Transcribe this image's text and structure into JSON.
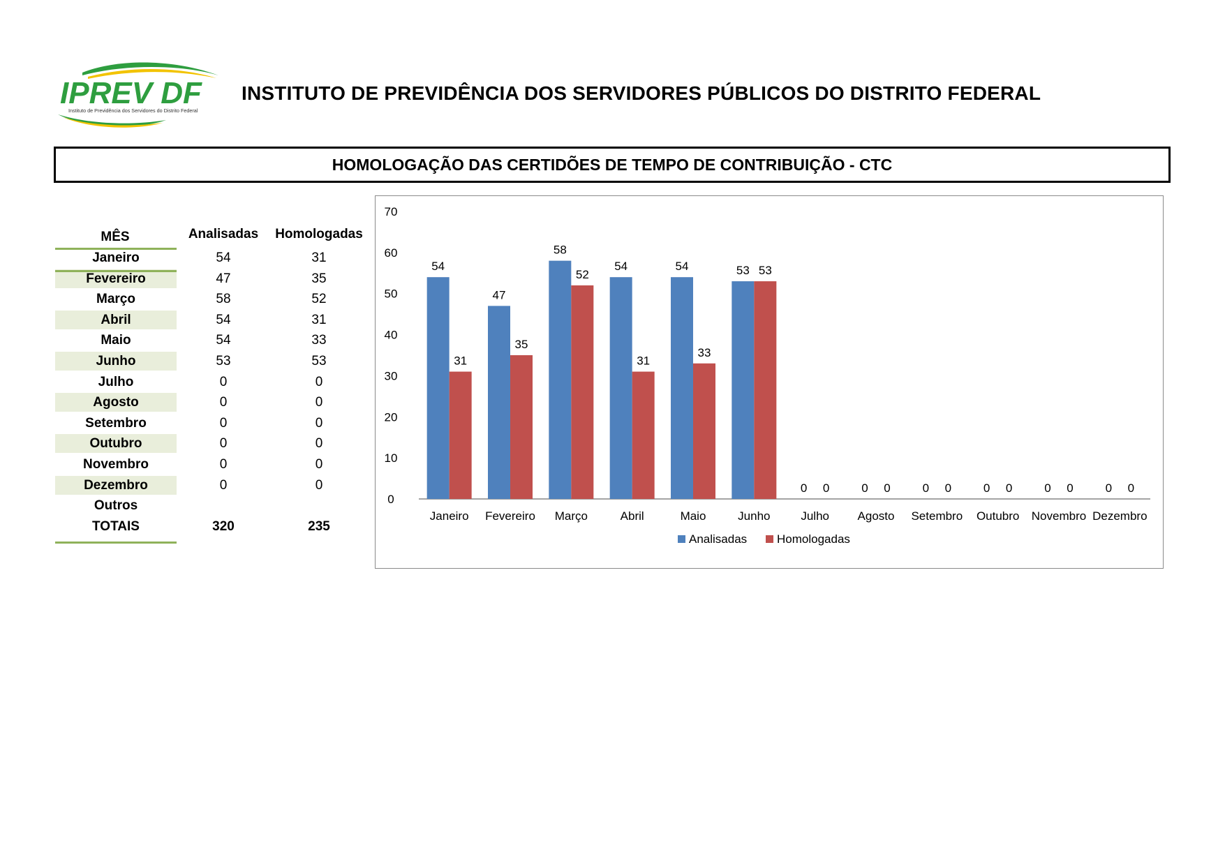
{
  "header": {
    "logo_text": "IPREV DF",
    "logo_subtext": "Instituto de Previdência dos Servidores do Distrito Federal",
    "org_title": "INSTITUTO DE PREVIDÊNCIA DOS SERVIDORES PÚBLICOS DO DISTRITO FEDERAL"
  },
  "report": {
    "title": "HOMOLOGAÇÃO DAS CERTIDÕES DE TEMPO DE CONTRIBUIÇÃO - CTC"
  },
  "table": {
    "headers": {
      "month": "MÊS",
      "analisadas": "Analisadas",
      "homologadas": "Homologadas"
    },
    "rows": [
      {
        "month": "Janeiro",
        "analisadas": "54",
        "homologadas": "31"
      },
      {
        "month": "Fevereiro",
        "analisadas": "47",
        "homologadas": "35"
      },
      {
        "month": "Março",
        "analisadas": "58",
        "homologadas": "52"
      },
      {
        "month": "Abril",
        "analisadas": "54",
        "homologadas": "31"
      },
      {
        "month": "Maio",
        "analisadas": "54",
        "homologadas": "33"
      },
      {
        "month": "Junho",
        "analisadas": "53",
        "homologadas": "53"
      },
      {
        "month": "Julho",
        "analisadas": "0",
        "homologadas": "0"
      },
      {
        "month": "Agosto",
        "analisadas": "0",
        "homologadas": "0"
      },
      {
        "month": "Setembro",
        "analisadas": "0",
        "homologadas": "0"
      },
      {
        "month": "Outubro",
        "analisadas": "0",
        "homologadas": "0"
      },
      {
        "month": "Novembro",
        "analisadas": "0",
        "homologadas": "0"
      },
      {
        "month": "Dezembro",
        "analisadas": "0",
        "homologadas": "0"
      },
      {
        "month": "Outros",
        "analisadas": "",
        "homologadas": ""
      }
    ],
    "totals": {
      "label": "TOTAIS",
      "analisadas": "320",
      "homologadas": "235"
    }
  },
  "colors": {
    "analisadas": "#4f81bd",
    "homologadas": "#c0504d",
    "table_accent": "#8fb25a",
    "table_shade": "#e9eedb",
    "logo_blue": "#1f4e9b",
    "logo_green": "#2e9e3f",
    "logo_yellow": "#f2c300"
  },
  "chart_data": {
    "type": "bar",
    "categories": [
      "Janeiro",
      "Fevereiro",
      "Março",
      "Abril",
      "Maio",
      "Junho",
      "Julho",
      "Agosto",
      "Setembro",
      "Outubro",
      "Novembro",
      "Dezembro"
    ],
    "series": [
      {
        "name": "Analisadas",
        "values": [
          54,
          47,
          58,
          54,
          54,
          53,
          0,
          0,
          0,
          0,
          0,
          0
        ]
      },
      {
        "name": "Homologadas",
        "values": [
          31,
          35,
          52,
          31,
          33,
          53,
          0,
          0,
          0,
          0,
          0,
          0
        ]
      }
    ],
    "title": "",
    "xlabel": "",
    "ylabel": "",
    "ylim": [
      0,
      70
    ],
    "yticks": [
      "0",
      "10",
      "20",
      "30",
      "40",
      "50",
      "60",
      "70"
    ],
    "data_labels": true,
    "grid": false,
    "legend": "bottom"
  }
}
